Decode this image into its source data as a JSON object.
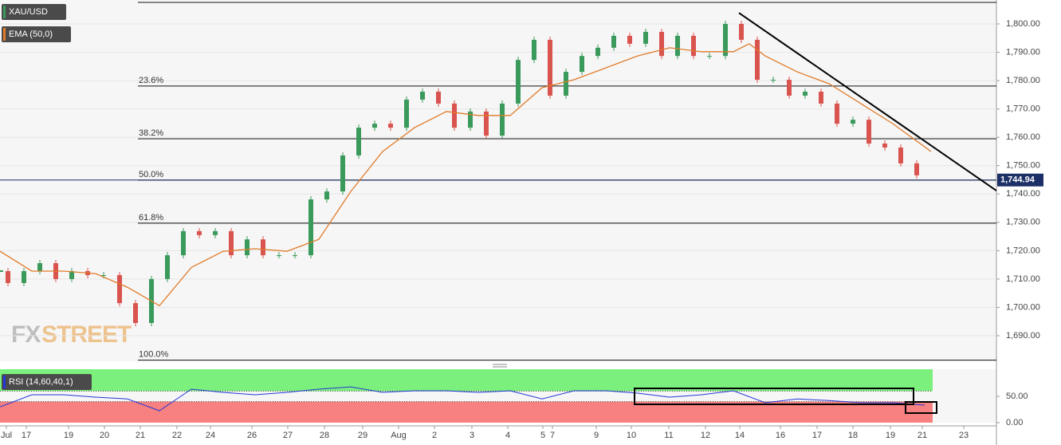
{
  "chart_data": {
    "type": "candle-line",
    "symbol": "XAU/USD",
    "ema_label": "EMA (50,0)",
    "xlim": [
      0,
      62.5
    ],
    "ylim": [
      1681,
      1808.44
    ],
    "grid": true,
    "up_color": "#3a9a5c",
    "down_color": "#d9534f",
    "ema_color": "#e07b2a",
    "yticks": [
      {
        "value": 1690,
        "label": "1,690.00"
      },
      {
        "value": 1700,
        "label": "1,700.00"
      },
      {
        "value": 1710,
        "label": "1,710.00"
      },
      {
        "value": 1720,
        "label": "1,720.00"
      },
      {
        "value": 1730,
        "label": "1,730.00"
      },
      {
        "value": 1740,
        "label": "1,740.00"
      },
      {
        "value": 1750,
        "label": "1,750.00"
      },
      {
        "value": 1760,
        "label": "1,760.00"
      },
      {
        "value": 1770,
        "label": "1,770.00"
      },
      {
        "value": 1780,
        "label": "1,780.00"
      },
      {
        "value": 1790,
        "label": "1,790.00"
      },
      {
        "value": 1800,
        "label": "1,800.00"
      }
    ],
    "xticks": [
      {
        "value": 0.4,
        "label": "Jul"
      },
      {
        "value": 1.65,
        "label": "17"
      },
      {
        "value": 4.3,
        "label": "19"
      },
      {
        "value": 6.55,
        "label": "20"
      },
      {
        "value": 8.8,
        "label": "21"
      },
      {
        "value": 11.1,
        "label": "22"
      },
      {
        "value": 13.2,
        "label": "24"
      },
      {
        "value": 15.8,
        "label": "26"
      },
      {
        "value": 18.05,
        "label": "27"
      },
      {
        "value": 20.35,
        "label": "28"
      },
      {
        "value": 22.75,
        "label": "29"
      },
      {
        "value": 25,
        "label": "Aug"
      },
      {
        "value": 27.25,
        "label": "2"
      },
      {
        "value": 29.6,
        "label": "3"
      },
      {
        "value": 31.85,
        "label": "4"
      },
      {
        "value": 34.05,
        "label": "5"
      },
      {
        "value": 34.65,
        "label": "7"
      },
      {
        "value": 37.4,
        "label": "9"
      },
      {
        "value": 39.6,
        "label": "10"
      },
      {
        "value": 41.95,
        "label": "11"
      },
      {
        "value": 44.25,
        "label": "12"
      },
      {
        "value": 46.4,
        "label": "14"
      },
      {
        "value": 48.95,
        "label": "16"
      },
      {
        "value": 51.25,
        "label": "17"
      },
      {
        "value": 53.5,
        "label": "18"
      },
      {
        "value": 55.85,
        "label": "19"
      },
      {
        "value": 57.85,
        "label": "21"
      },
      {
        "value": 60.45,
        "label": "23"
      }
    ],
    "price": {
      "x": [
        0,
        1,
        2,
        3,
        4,
        5,
        6,
        7,
        8,
        9,
        10,
        11,
        12,
        13,
        14,
        15,
        16,
        17,
        18,
        19,
        20,
        21,
        22,
        23,
        24,
        25,
        26,
        27,
        28,
        29,
        30,
        31,
        32,
        33,
        34,
        35,
        36,
        37,
        38,
        39,
        40,
        41,
        42,
        43,
        44,
        45,
        46,
        47,
        48,
        49,
        50,
        51,
        52,
        53,
        54,
        55,
        56,
        57,
        58
      ],
      "values": [
        1712.8,
        1708.6,
        1712.8,
        1715.6,
        1710,
        1712.8,
        1711.4,
        1711.4,
        1701.5,
        1694.5,
        1710,
        1718.4,
        1726.9,
        1725.5,
        1726.9,
        1718.4,
        1724,
        1718.4,
        1718.4,
        1718.4,
        1738.1,
        1740.9,
        1753.6,
        1763.4,
        1764.8,
        1763.4,
        1773.3,
        1776.1,
        1771.9,
        1763.4,
        1769.1,
        1760.6,
        1771.9,
        1787.3,
        1794.4,
        1774.7,
        1783.1,
        1788.7,
        1791.6,
        1795.8,
        1793,
        1797.2,
        1788.7,
        1795.8,
        1788.7,
        1788.7,
        1800,
        1794.4,
        1780.3,
        1780.3,
        1774.7,
        1776.1,
        1771.9,
        1764.8,
        1766.2,
        1757.8,
        1756.4,
        1750.8,
        1746.6
      ]
    },
    "ema": {
      "x": [
        0,
        2,
        4,
        6,
        8,
        10,
        12,
        14,
        16,
        18,
        20,
        22,
        24,
        26,
        28,
        30,
        32,
        34,
        36,
        38,
        40,
        42,
        44,
        46,
        47,
        48,
        50,
        52,
        54,
        56,
        58.4
      ],
      "values": [
        1719.8,
        1712.8,
        1712.8,
        1711.9,
        1707.1,
        1700.6,
        1714.1,
        1719.8,
        1720.7,
        1719.8,
        1724,
        1740.9,
        1755,
        1763.4,
        1769.1,
        1767.7,
        1767.7,
        1777.5,
        1780.3,
        1784.5,
        1788.7,
        1791.6,
        1790.2,
        1790.2,
        1793,
        1788.7,
        1783.1,
        1778.9,
        1771.9,
        1764.8,
        1755
      ]
    },
    "current_price": {
      "value": 1744.94,
      "label": "1,744.94"
    },
    "range_high": 1807.6,
    "fib_levels": [
      {
        "value": 1778.1,
        "label": "23.6%"
      },
      {
        "value": 1759.5,
        "label": "38.2%"
      },
      {
        "value": 1744.9,
        "label": "50.0%"
      },
      {
        "value": 1729.7,
        "label": "61.8%"
      },
      {
        "value": 1681.4,
        "label": "100.0%"
      }
    ],
    "trendline": {
      "x": [
        46.35,
        62.5
      ],
      "values": [
        1803.9,
        1741.2
      ]
    },
    "rsi": {
      "label": "RSI (14,60,40,1)",
      "color": "#2338d6",
      "ylim": [
        0,
        101.5
      ],
      "yticks": [
        {
          "value": 0,
          "label": "0.00"
        },
        {
          "value": 50,
          "label": "50.00"
        }
      ],
      "upper": 60,
      "lower": 40,
      "x": [
        0,
        2,
        4,
        6,
        8,
        10,
        12,
        14,
        16,
        18,
        20,
        22,
        24,
        26,
        28,
        30,
        32,
        34,
        36,
        38,
        40,
        42,
        44,
        46,
        48,
        50,
        52,
        54,
        56,
        58
      ],
      "values": [
        30,
        53,
        53,
        48.5,
        45,
        22.7,
        63.6,
        57.6,
        53,
        57.6,
        63.6,
        68,
        57.6,
        60.6,
        60.6,
        57.6,
        60.6,
        45,
        60.6,
        60.6,
        56,
        48.5,
        53,
        60.6,
        37.9,
        45,
        42,
        37.9,
        37.9,
        33.3
      ]
    }
  }
}
